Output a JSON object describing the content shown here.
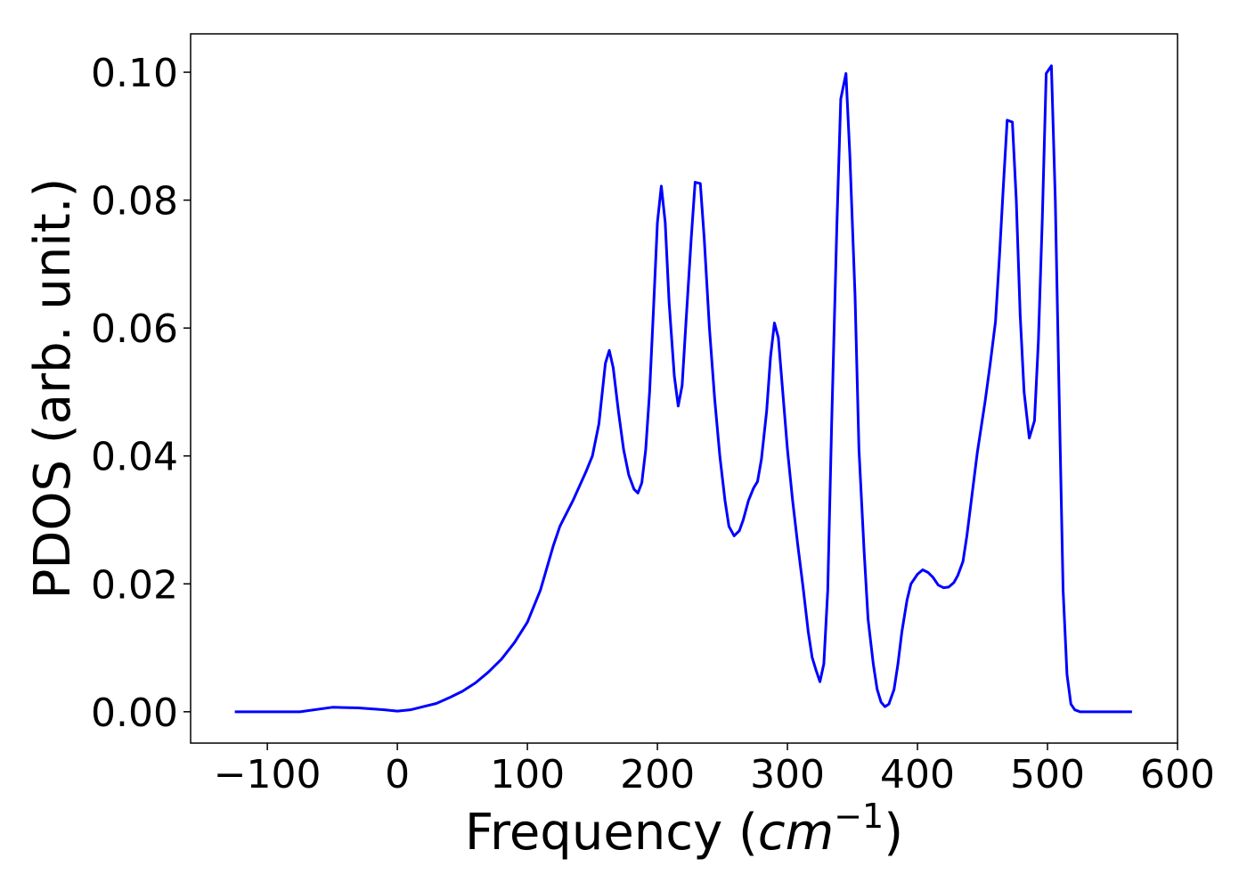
{
  "chart_data": {
    "type": "line",
    "xlabel": [
      "Frequency (",
      "cm",
      "−1",
      ")"
    ],
    "ylabel": "PDOS (arb. unit.)",
    "color": "#0000ff",
    "xlim": [
      -159,
      600
    ],
    "ylim": [
      -0.0049,
      0.106
    ],
    "xticks": [
      {
        "value": -100,
        "label": "−100"
      },
      0,
      100,
      200,
      300,
      400,
      500,
      600
    ],
    "yticks": [
      {
        "value": 0,
        "label": "0.00"
      },
      0.02,
      0.04,
      0.06,
      0.08,
      {
        "value": 0.1,
        "label": "0.10"
      }
    ],
    "x": [
      -125,
      -75,
      -50,
      -30,
      -10,
      0,
      10,
      20,
      30,
      40,
      50,
      60,
      70,
      80,
      90,
      100,
      110,
      120,
      125,
      135,
      145,
      150,
      155,
      160,
      163,
      166,
      170,
      174,
      178,
      182,
      185,
      188,
      191,
      194,
      197,
      200,
      203,
      206,
      209,
      213,
      216,
      219,
      222,
      226,
      229,
      233,
      236,
      240,
      244,
      248,
      252,
      255,
      259,
      263,
      266,
      270,
      274,
      277,
      280,
      284,
      287,
      290,
      293,
      296,
      300,
      304,
      308,
      312,
      316,
      319,
      322,
      325,
      328,
      331,
      334,
      338,
      341,
      345,
      348,
      352,
      355,
      359,
      362,
      366,
      369,
      372,
      375,
      378,
      382,
      385,
      388,
      392,
      395,
      400,
      404,
      408,
      412,
      416,
      420,
      424,
      428,
      431,
      435,
      438,
      442,
      446,
      449,
      452,
      456,
      460,
      463,
      466,
      469,
      473,
      476,
      479,
      482,
      486,
      490,
      493,
      496,
      499,
      503,
      506,
      509,
      512,
      515,
      518,
      521,
      525,
      565
    ],
    "values": [
      0,
      0,
      0.0007,
      0.0006,
      0.0003,
      0.0001,
      0.0003,
      0.0008,
      0.0013,
      0.0022,
      0.0032,
      0.0045,
      0.0062,
      0.0082,
      0.0108,
      0.014,
      0.019,
      0.026,
      0.029,
      0.033,
      0.0375,
      0.04,
      0.045,
      0.0545,
      0.0565,
      0.0538,
      0.047,
      0.041,
      0.037,
      0.0348,
      0.0342,
      0.0358,
      0.041,
      0.05,
      0.063,
      0.0765,
      0.0822,
      0.0765,
      0.064,
      0.0525,
      0.0478,
      0.051,
      0.061,
      0.074,
      0.0828,
      0.0826,
      0.074,
      0.06,
      0.049,
      0.04,
      0.033,
      0.029,
      0.0275,
      0.0283,
      0.03,
      0.033,
      0.035,
      0.036,
      0.0395,
      0.047,
      0.0555,
      0.0608,
      0.0585,
      0.051,
      0.041,
      0.033,
      0.026,
      0.0195,
      0.0125,
      0.0085,
      0.0065,
      0.0047,
      0.0075,
      0.019,
      0.045,
      0.076,
      0.0958,
      0.0998,
      0.087,
      0.065,
      0.041,
      0.025,
      0.0145,
      0.0075,
      0.0035,
      0.0015,
      0.0008,
      0.0012,
      0.0035,
      0.0075,
      0.0125,
      0.0175,
      0.02,
      0.0215,
      0.0222,
      0.0218,
      0.021,
      0.0198,
      0.0194,
      0.0195,
      0.0202,
      0.0213,
      0.0235,
      0.0275,
      0.034,
      0.0405,
      0.0445,
      0.0485,
      0.0545,
      0.061,
      0.071,
      0.082,
      0.0925,
      0.0922,
      0.08,
      0.062,
      0.05,
      0.0428,
      0.0455,
      0.058,
      0.077,
      0.0998,
      0.101,
      0.08,
      0.049,
      0.019,
      0.0058,
      0.0012,
      0.0003,
      0,
      0
    ]
  }
}
